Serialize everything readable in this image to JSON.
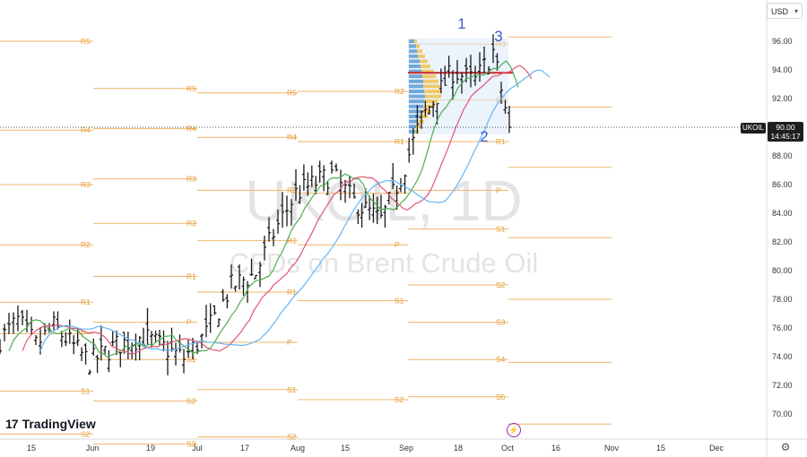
{
  "currency": "USD",
  "symbol": "UKOIL",
  "last_price": "90.00",
  "countdown": "14:45:17",
  "watermark": {
    "line1": "UKOIL, 1D",
    "line2": "CFDs on Brent Crude Oil"
  },
  "brand": "TradingView",
  "icons": [
    "currency-dropdown-icon",
    "settings-gear-icon",
    "flash-event-icon",
    "tradingview-logo-icon"
  ],
  "chart_data": {
    "type": "ohlc-bar",
    "y_ticks": [
      "96.00",
      "94.00",
      "92.00",
      "90.00",
      "88.00",
      "86.00",
      "84.00",
      "82.00",
      "80.00",
      "78.00",
      "76.00",
      "74.00",
      "72.00",
      "70.00"
    ],
    "ylim": [
      69,
      97
    ],
    "x_ticks": [
      "15",
      "Jun",
      "19",
      "Jul",
      "17",
      "Aug",
      "15",
      "Sep",
      "18",
      "Oct",
      "16",
      "Nov",
      "15",
      "Dec"
    ],
    "close_series": [
      {
        "date": "May 6",
        "c": 75.2
      },
      {
        "date": "May 13",
        "c": 76.5
      },
      {
        "date": "May 20",
        "c": 74.8
      },
      {
        "date": "May 27",
        "c": 76.1
      },
      {
        "date": "Jun 3",
        "c": 73.6
      },
      {
        "date": "Jun 10",
        "c": 74.8
      },
      {
        "date": "Jun 17",
        "c": 75.4
      },
      {
        "date": "Jun 24",
        "c": 73.9
      },
      {
        "date": "Jul 3",
        "c": 75.6
      },
      {
        "date": "Jul 10",
        "c": 78.9
      },
      {
        "date": "Jul 17",
        "c": 79.8
      },
      {
        "date": "Jul 24",
        "c": 82.6
      },
      {
        "date": "Jul 31",
        "c": 85.4
      },
      {
        "date": "Aug 10",
        "c": 86.7
      },
      {
        "date": "Aug 17",
        "c": 84.8
      },
      {
        "date": "Aug 24",
        "c": 83.5
      },
      {
        "date": "Aug 31",
        "c": 86.5
      },
      {
        "date": "Sep 7",
        "c": 90.6
      },
      {
        "date": "Sep 14",
        "c": 93.9
      },
      {
        "date": "Sep 21",
        "c": 93.2
      },
      {
        "date": "Sep 28",
        "c": 95.3
      },
      {
        "date": "Oct 3",
        "c": 90.0
      }
    ],
    "moving_averages": [
      {
        "name": "green",
        "color": "#4caf50"
      },
      {
        "name": "red",
        "color": "#e35572"
      },
      {
        "name": "blue",
        "color": "#64b5f6"
      }
    ],
    "wave_labels": [
      "1",
      "2",
      "3"
    ],
    "volume_profile_poc": 93.8,
    "pivot_blocks": [
      {
        "period": "May",
        "levels": [
          {
            "l": "R5",
            "v": 96.0
          },
          {
            "l": "R4",
            "v": 89.8
          },
          {
            "l": "R3",
            "v": 86.0
          },
          {
            "l": "R2",
            "v": 81.8
          },
          {
            "l": "R1",
            "v": 77.8
          },
          {
            "l": "P",
            "v": 75.6
          },
          {
            "l": "S1",
            "v": 71.6
          },
          {
            "l": "S2",
            "v": 68.6
          }
        ]
      },
      {
        "period": "Jun",
        "levels": [
          {
            "l": "R5",
            "v": 92.7
          },
          {
            "l": "R4",
            "v": 89.9
          },
          {
            "l": "R3",
            "v": 86.4
          },
          {
            "l": "R2",
            "v": 83.3
          },
          {
            "l": "R1",
            "v": 79.6
          },
          {
            "l": "P",
            "v": 76.4
          },
          {
            "l": "S1",
            "v": 73.8
          },
          {
            "l": "S2",
            "v": 70.9
          },
          {
            "l": "S3",
            "v": 67.9
          }
        ]
      },
      {
        "period": "Jul",
        "levels": [
          {
            "l": "R5",
            "v": 92.4
          },
          {
            "l": "R4",
            "v": 89.3
          },
          {
            "l": "R3",
            "v": 85.6
          },
          {
            "l": "R2",
            "v": 82.1
          },
          {
            "l": "R1",
            "v": 78.5
          },
          {
            "l": "P",
            "v": 75.0
          },
          {
            "l": "S1",
            "v": 71.7
          },
          {
            "l": "S2",
            "v": 68.4
          }
        ]
      },
      {
        "period": "Aug",
        "levels": [
          {
            "l": "R2",
            "v": 92.5
          },
          {
            "l": "R1",
            "v": 89.0
          },
          {
            "l": "P",
            "v": 85.4
          },
          {
            "l": "P",
            "v": 81.8
          },
          {
            "l": "S1",
            "v": 77.9
          },
          {
            "l": "S2",
            "v": 71.0
          }
        ]
      },
      {
        "period": "Sep",
        "levels": [
          {
            "l": "R3",
            "v": 95.8
          },
          {
            "l": "R2",
            "v": 91.9
          },
          {
            "l": "R1",
            "v": 89.0
          },
          {
            "l": "P",
            "v": 85.6
          },
          {
            "l": "S1",
            "v": 82.9
          },
          {
            "l": "S2",
            "v": 79.0
          },
          {
            "l": "S3",
            "v": 76.4
          },
          {
            "l": "S4",
            "v": 73.8
          },
          {
            "l": "S5",
            "v": 71.2
          }
        ]
      },
      {
        "period": "Oct",
        "levels": [
          {
            "l": "3",
            "v": 96.3
          },
          {
            "l": "R1",
            "v": 91.4
          },
          {
            "l": "S1",
            "v": 87.2
          },
          {
            "l": "S2",
            "v": 82.3
          },
          {
            "l": "S3",
            "v": 78.0
          },
          {
            "l": "S4",
            "v": 73.6
          },
          {
            "l": "S5",
            "v": 69.3
          }
        ]
      }
    ],
    "current_price": 90.0
  }
}
